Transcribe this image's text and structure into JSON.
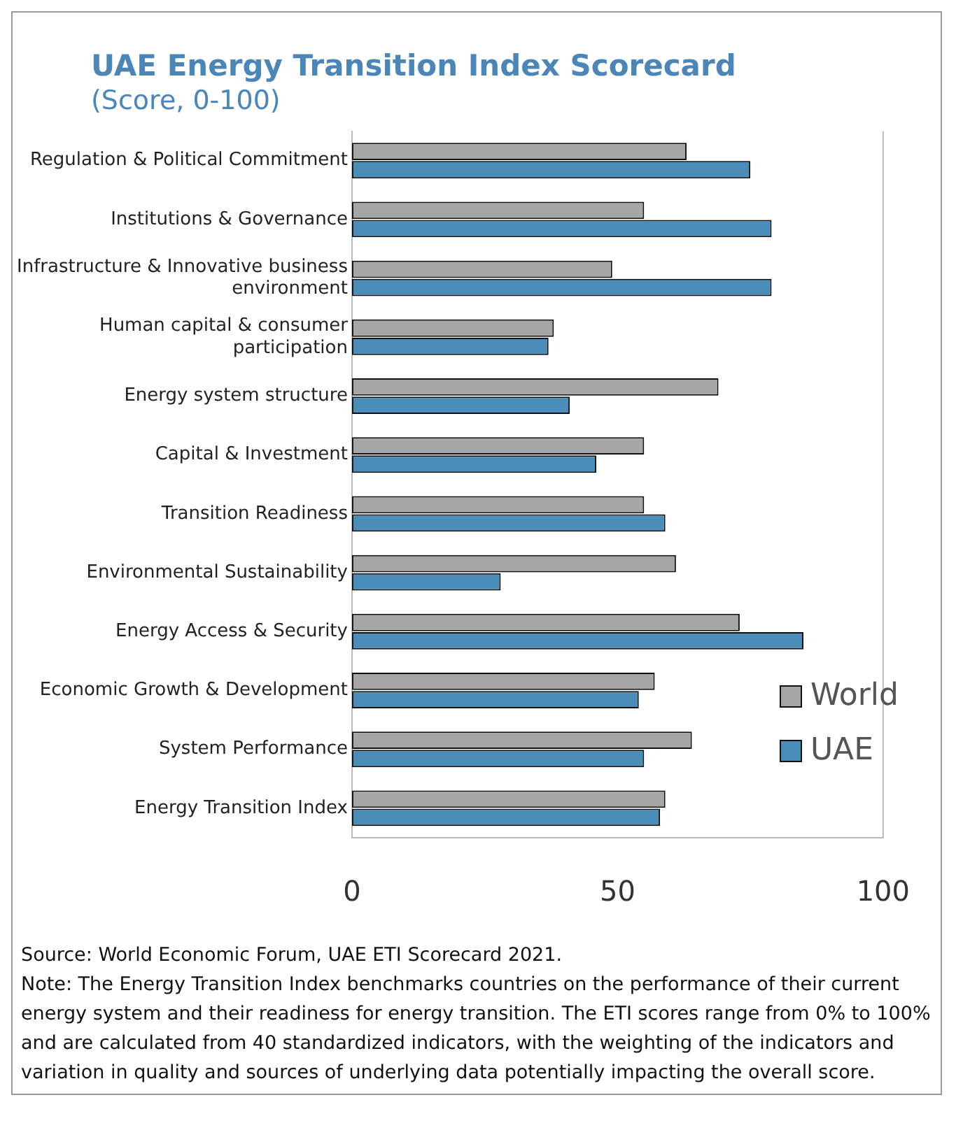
{
  "chart_data": {
    "type": "bar",
    "orientation": "horizontal",
    "title": "UAE Energy Transition Index Scorecard",
    "subtitle": "(Score, 0-100)",
    "categories": [
      "Regulation & Political Commitment",
      "Institutions & Governance",
      "Infrastructure & Innovative business environment",
      "Human capital & consumer participation",
      "Energy system structure",
      "Capital & Investment",
      "Transition Readiness",
      "Environmental Sustainability",
      "Energy Access & Security",
      "Economic Growth & Development",
      "System Performance",
      "Energy Transition Index"
    ],
    "series": [
      {
        "name": "World",
        "color": "#a6a6a6",
        "values": [
          63,
          55,
          49,
          38,
          69,
          55,
          55,
          61,
          73,
          57,
          64,
          59
        ]
      },
      {
        "name": "UAE",
        "color": "#4a8db8",
        "values": [
          75,
          79,
          79,
          37,
          41,
          46,
          59,
          28,
          85,
          54,
          55,
          58
        ]
      }
    ],
    "xlim": [
      0,
      100
    ],
    "xticks": [
      0,
      50,
      100
    ],
    "legend": "bottom right",
    "grid": false,
    "annotations": [
      "Source: World Economic Forum, UAE ETI Scorecard 2021.",
      "Note: The Energy Transition Index benchmarks countries on the performance of their current energy system and their readiness for energy transition. The ETI scores range from 0% to 100% and are calculated from 40 standardized indicators, with the weighting of the indicators and variation in quality and sources of underlying data potentially impacting the overall score."
    ]
  }
}
